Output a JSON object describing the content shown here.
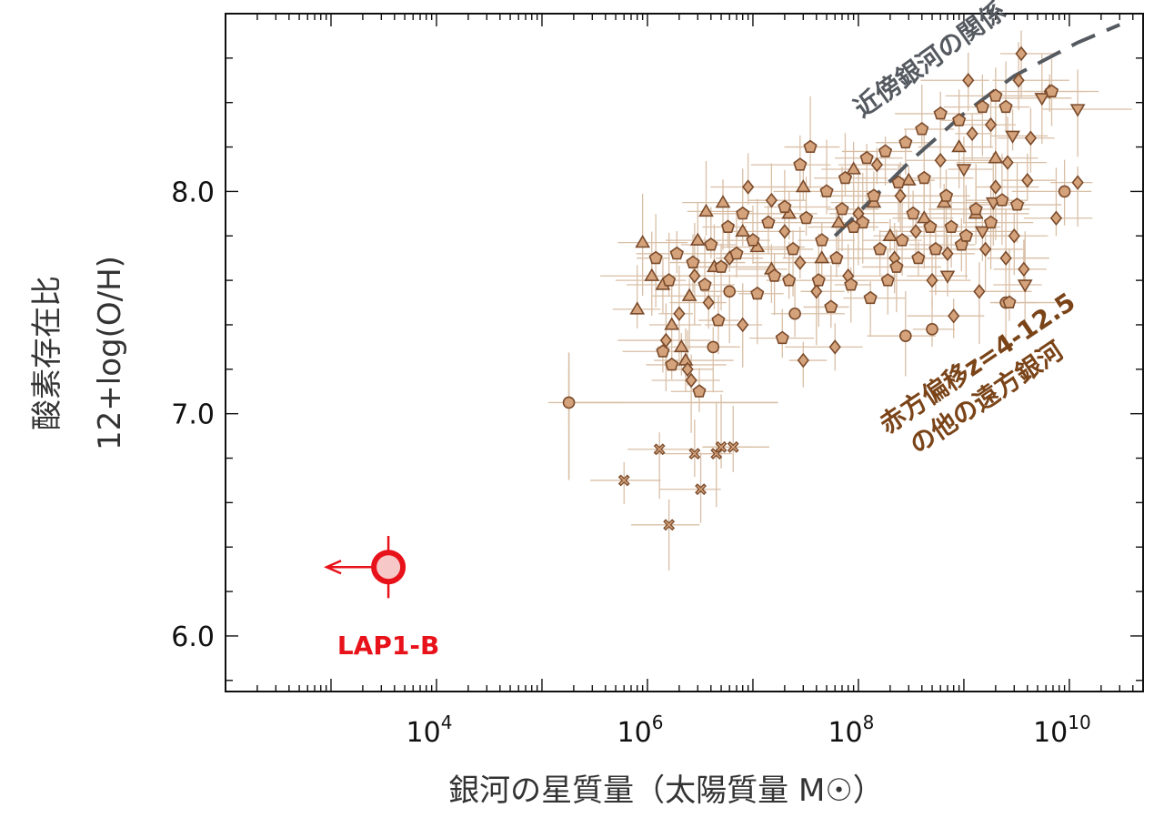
{
  "chart_data": {
    "type": "scatter",
    "title": "",
    "xlabel": "銀河の星質量（太陽質量 M☉）",
    "ylabel_line1": "酸素存在比",
    "ylabel_line2": "12+log(O/H)",
    "x_scale": "log",
    "xlim": [
      100,
      50000000000
    ],
    "ylim": [
      5.75,
      8.8
    ],
    "x_ticks": [
      {
        "value": 10000,
        "base": "10",
        "exp": "4"
      },
      {
        "value": 1000000,
        "base": "10",
        "exp": "6"
      },
      {
        "value": 100000000,
        "base": "10",
        "exp": "8"
      },
      {
        "value": 10000000000,
        "base": "10",
        "exp": "10"
      }
    ],
    "y_ticks": [
      {
        "value": 6.0,
        "label": "6.0"
      },
      {
        "value": 7.0,
        "label": "7.0"
      },
      {
        "value": 8.0,
        "label": "8.0"
      }
    ],
    "grid": false,
    "colors": {
      "highlight": "#e8121a",
      "highlight_fill": "#f7c8c8",
      "marker_fill": "#d4a37c",
      "marker_edge": "#7a4a2a",
      "errorbar": "#d9bfa6",
      "relation_line": "#555a60",
      "annotation_brown": "#7a4418",
      "annotation_gray": "#555a60"
    },
    "highlight_point": {
      "label": "LAP1-B",
      "x": 3500,
      "y": 6.31,
      "y_err": 0.14,
      "upper_limit_x": true
    },
    "nearby_relation": {
      "label": "近傍銀河の関係",
      "x": [
        60000000,
        300000000,
        1000000000,
        3000000000,
        12000000000,
        30000000000
      ],
      "y": [
        7.8,
        8.13,
        8.35,
        8.52,
        8.67,
        8.75
      ]
    },
    "sample_label_line1": "赤方偏移z=4-12.5",
    "sample_label_line2": "の他の遠方銀河",
    "series": [
      {
        "marker": "cross",
        "points": [
          [
            600000,
            6.7
          ],
          [
            1300000,
            6.84
          ],
          [
            1600000,
            6.5
          ],
          [
            2800000,
            6.82
          ],
          [
            3200000,
            6.66
          ],
          [
            4500000,
            6.82
          ],
          [
            5000000,
            6.85
          ],
          [
            6500000,
            6.85
          ]
        ]
      },
      {
        "marker": "circle",
        "points": [
          [
            180000,
            7.05
          ],
          [
            4200000,
            7.3
          ],
          [
            6000000,
            7.55
          ],
          [
            25000000,
            7.45
          ],
          [
            280000000,
            7.35
          ],
          [
            500000000,
            7.38
          ],
          [
            2500000000,
            7.5
          ],
          [
            9000000000,
            8.0
          ]
        ]
      },
      {
        "marker": "triangle-up",
        "points": [
          [
            2300000,
            7.24
          ],
          [
            800000,
            7.47
          ],
          [
            900000,
            7.77
          ],
          [
            1100000,
            7.62
          ],
          [
            1400000,
            7.58
          ],
          [
            1700000,
            7.4
          ],
          [
            2100000,
            7.3
          ],
          [
            2500000,
            7.53
          ],
          [
            3000000,
            7.78
          ],
          [
            3600000,
            7.91
          ],
          [
            4300000,
            7.66
          ],
          [
            5200000,
            7.95
          ],
          [
            8000000,
            7.82
          ],
          [
            11000000,
            7.75
          ],
          [
            15000000,
            7.65
          ],
          [
            22000000,
            7.9
          ],
          [
            30000000,
            8.02
          ],
          [
            45000000,
            7.7
          ],
          [
            65000000,
            7.86
          ],
          [
            90000000,
            8.1
          ],
          [
            140000000,
            7.95
          ],
          [
            200000000,
            7.8
          ],
          [
            300000000,
            8.05
          ],
          [
            420000000,
            7.88
          ],
          [
            650000000,
            7.95
          ],
          [
            900000000,
            8.2
          ],
          [
            1300000000,
            7.9
          ],
          [
            2000000000,
            8.15
          ]
        ]
      },
      {
        "marker": "triangle-down",
        "points": [
          [
            12000000000,
            8.37
          ],
          [
            3800000000,
            7.58
          ],
          [
            5500000000,
            8.42
          ],
          [
            1900000000,
            7.95
          ],
          [
            1000000000,
            8.1
          ],
          [
            700000000,
            7.62
          ],
          [
            2900000000,
            8.25
          ],
          [
            1500000000,
            7.82
          ]
        ]
      },
      {
        "marker": "diamond",
        "points": [
          [
            3500000000,
            8.62
          ],
          [
            3300000000,
            8.5
          ],
          [
            1100000000,
            8.5
          ],
          [
            6500000000,
            8.45
          ],
          [
            4300000000,
            8.24
          ],
          [
            12000000000,
            8.04
          ],
          [
            7500000000,
            7.88
          ],
          [
            3700000000,
            7.65
          ],
          [
            2500000000,
            7.7
          ],
          [
            1800000000,
            8.3
          ],
          [
            3000000000,
            7.8
          ],
          [
            1400000000,
            7.55
          ],
          [
            800000000,
            7.44
          ],
          [
            2000000000,
            8.02
          ],
          [
            4000000000,
            8.05
          ],
          [
            2600000000,
            8.13
          ],
          [
            1600000000,
            7.74
          ],
          [
            500000000,
            7.6
          ],
          [
            350000000,
            7.82
          ],
          [
            220000000,
            7.7
          ],
          [
            150000000,
            8.12
          ],
          [
            100000000,
            7.9
          ],
          [
            80000000,
            7.62
          ],
          [
            60000000,
            7.3
          ],
          [
            40000000,
            7.55
          ],
          [
            28000000,
            7.68
          ],
          [
            20000000,
            7.82
          ],
          [
            15000000,
            7.96
          ],
          [
            9000000,
            8.02
          ],
          [
            6000000,
            7.7
          ],
          [
            3800000,
            7.5
          ],
          [
            2800000,
            7.62
          ],
          [
            2000000,
            7.45
          ],
          [
            1500000,
            7.33
          ],
          [
            2400000,
            7.2
          ],
          [
            2600000,
            7.15
          ],
          [
            8000000,
            7.4
          ],
          [
            30000000,
            7.24
          ],
          [
            250000000,
            7.98
          ],
          [
            600000000,
            8.14
          ],
          [
            1200000000,
            8.26
          ],
          [
            700000000,
            7.72
          ]
        ]
      },
      {
        "marker": "pentagon",
        "points": [
          [
            6800000000,
            8.45
          ],
          [
            2000000000,
            8.43
          ],
          [
            2500000000,
            8.38
          ],
          [
            1500000000,
            8.38
          ],
          [
            900000000,
            8.32
          ],
          [
            600000000,
            8.35
          ],
          [
            400000000,
            8.28
          ],
          [
            280000000,
            8.22
          ],
          [
            180000000,
            8.18
          ],
          [
            120000000,
            8.15
          ],
          [
            75000000,
            8.06
          ],
          [
            50000000,
            8.0
          ],
          [
            35000000,
            8.2
          ],
          [
            28000000,
            8.12
          ],
          [
            20000000,
            7.93
          ],
          [
            14000000,
            7.86
          ],
          [
            10000000,
            7.78
          ],
          [
            7000000,
            7.72
          ],
          [
            5000000,
            7.66
          ],
          [
            3500000,
            7.58
          ],
          [
            1200000,
            7.7
          ],
          [
            1400000,
            7.28
          ],
          [
            1700000,
            7.22
          ],
          [
            22000000,
            7.6
          ],
          [
            45000000,
            7.78
          ],
          [
            70000000,
            7.92
          ],
          [
            110000000,
            7.86
          ],
          [
            160000000,
            7.74
          ],
          [
            230000000,
            7.66
          ],
          [
            330000000,
            7.9
          ],
          [
            480000000,
            7.84
          ],
          [
            680000000,
            7.98
          ],
          [
            950000000,
            7.76
          ],
          [
            1300000000,
            7.92
          ],
          [
            1800000000,
            7.86
          ],
          [
            2300000000,
            7.96
          ],
          [
            3200000000,
            7.94
          ],
          [
            2700000000,
            7.5
          ],
          [
            19000000,
            7.34
          ],
          [
            3100000,
            7.1
          ],
          [
            4700000,
            7.42
          ],
          [
            55000000,
            7.48
          ],
          [
            85000000,
            7.58
          ],
          [
            130000000,
            7.52
          ],
          [
            190000000,
            7.6
          ],
          [
            260000000,
            7.78
          ],
          [
            370000000,
            7.7
          ],
          [
            540000000,
            7.74
          ],
          [
            760000000,
            7.84
          ],
          [
            1050000000,
            7.8
          ],
          [
            420000000,
            8.06
          ],
          [
            240000000,
            8.04
          ],
          [
            140000000,
            7.98
          ],
          [
            90000000,
            7.84
          ],
          [
            62000000,
            7.7
          ],
          [
            42000000,
            7.6
          ],
          [
            32000000,
            7.88
          ],
          [
            24000000,
            7.74
          ],
          [
            16000000,
            7.62
          ],
          [
            11000000,
            7.54
          ],
          [
            8000000,
            7.9
          ],
          [
            5800000,
            7.84
          ],
          [
            4000000,
            7.76
          ],
          [
            2700000,
            7.68
          ],
          [
            1900000,
            7.72
          ],
          [
            1600000,
            7.6
          ]
        ]
      }
    ]
  }
}
